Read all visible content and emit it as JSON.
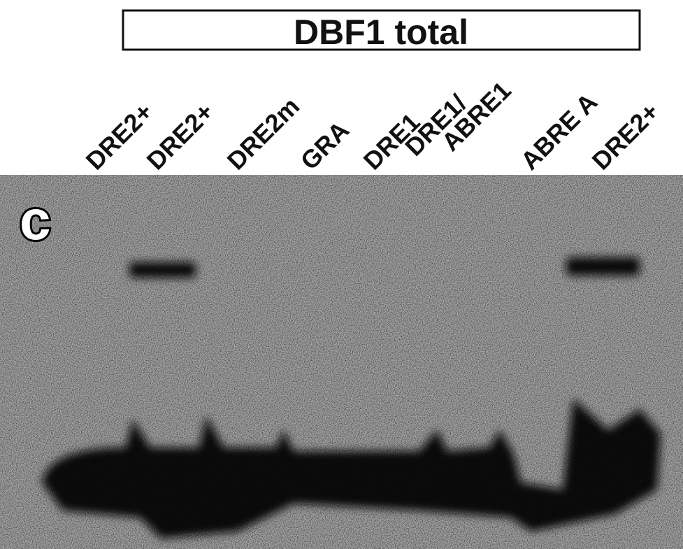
{
  "title": "DBF1 total",
  "panel_label": "c",
  "lanes": [
    [
      "DRE2+"
    ],
    [
      "DRE2+"
    ],
    [
      "DRE2m"
    ],
    [
      "GRA"
    ],
    [
      "DRE1"
    ],
    [
      "DRE1/",
      "ABRE1"
    ],
    [
      "ABRE A"
    ],
    [
      "DRE2+"
    ]
  ]
}
